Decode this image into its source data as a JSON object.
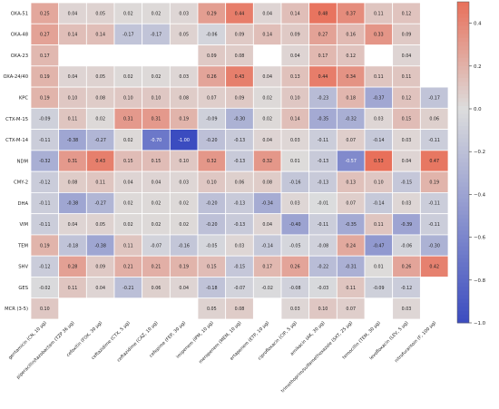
{
  "chart_data": {
    "type": "heatmap",
    "title": "",
    "xlabel": "",
    "ylabel": "",
    "rows": [
      "OXA-51",
      "OXA-48",
      "OXA-23",
      "OXA-24/40",
      "KPC",
      "CTX-M-15",
      "CTX-M-14",
      "NDM",
      "CMY-2",
      "DHA",
      "VIM",
      "TEM",
      "SHV",
      "GES",
      "MCR (3-5)"
    ],
    "columns": [
      "gentamicin (CN, 10 µg)",
      "piperacillin/tazobactam (TZP 36 µg)",
      "cefoxitin (FOX, 30 µg)",
      "ceftazidime (CTX, 5 µg)",
      "ceftazidime (CAZ, 10 µg)",
      "cefepime (FEP, 30 µg)",
      "imipenem (IPM, 10 µg)",
      "meropenem (MEM, 10 µg)",
      "ertapenem (ETP, 10 µg)",
      "ciprofloxacin (CIP, 5 µg)",
      "amikacin (AK, 30 µg)",
      "trimethoprim/sulfamethoxazole (SXT, 25 µg)",
      "temocillin (TEM, 30 µg)",
      "levofloxacin (LEV, 5 µg)",
      "nitrofurantoin (F, 100 µg)"
    ],
    "values": [
      [
        0.25,
        0.04,
        0.05,
        0.02,
        0.02,
        0.03,
        0.29,
        0.44,
        0.04,
        0.14,
        0.48,
        0.37,
        0.11,
        0.12,
        null
      ],
      [
        0.27,
        0.14,
        0.14,
        -0.17,
        -0.17,
        0.05,
        -0.06,
        0.09,
        0.14,
        0.09,
        0.27,
        0.16,
        0.33,
        0.09,
        null
      ],
      [
        0.17,
        null,
        null,
        null,
        null,
        null,
        0.09,
        0.08,
        null,
        0.04,
        0.17,
        0.12,
        null,
        0.04,
        null
      ],
      [
        0.19,
        0.04,
        0.05,
        0.02,
        0.02,
        0.03,
        0.26,
        0.43,
        0.04,
        0.13,
        0.44,
        0.34,
        0.11,
        0.11,
        null
      ],
      [
        0.19,
        0.1,
        0.08,
        0.1,
        0.1,
        0.08,
        0.07,
        0.09,
        0.02,
        0.1,
        -0.23,
        0.18,
        -0.37,
        0.12,
        -0.17
      ],
      [
        -0.09,
        0.11,
        0.02,
        0.31,
        0.31,
        0.19,
        -0.09,
        -0.3,
        0.02,
        0.14,
        -0.35,
        -0.32,
        0.03,
        0.15,
        0.06
      ],
      [
        -0.11,
        -0.38,
        -0.27,
        0.02,
        -0.7,
        -1.0,
        -0.2,
        -0.13,
        0.04,
        0.03,
        -0.11,
        0.07,
        -0.14,
        0.03,
        -0.11
      ],
      [
        -0.32,
        0.31,
        0.43,
        0.15,
        0.15,
        0.1,
        0.32,
        -0.13,
        0.32,
        0.01,
        -0.13,
        -0.57,
        0.53,
        0.04,
        0.47
      ],
      [
        -0.12,
        0.08,
        0.11,
        0.04,
        0.04,
        0.03,
        0.1,
        0.06,
        0.08,
        -0.16,
        -0.13,
        0.13,
        0.1,
        -0.15,
        0.19
      ],
      [
        -0.11,
        -0.38,
        -0.27,
        0.02,
        0.02,
        0.02,
        -0.2,
        -0.13,
        -0.34,
        0.03,
        -0.01,
        0.07,
        -0.14,
        0.03,
        -0.11
      ],
      [
        -0.11,
        0.04,
        0.05,
        0.02,
        0.02,
        0.02,
        -0.2,
        -0.13,
        0.04,
        -0.4,
        -0.11,
        -0.35,
        0.11,
        -0.39,
        -0.11
      ],
      [
        0.19,
        -0.18,
        -0.38,
        0.11,
        -0.07,
        -0.16,
        -0.05,
        0.03,
        -0.14,
        -0.05,
        -0.08,
        0.24,
        -0.47,
        -0.06,
        -0.3
      ],
      [
        -0.12,
        0.28,
        0.09,
        0.21,
        0.21,
        0.19,
        0.15,
        -0.15,
        0.17,
        0.26,
        -0.22,
        -0.31,
        0.01,
        0.26,
        0.42
      ],
      [
        -0.02,
        0.11,
        0.04,
        -0.21,
        0.06,
        0.04,
        -0.18,
        -0.07,
        -0.02,
        -0.08,
        -0.03,
        0.11,
        -0.09,
        -0.12,
        null
      ],
      [
        0.1,
        null,
        null,
        null,
        null,
        null,
        0.05,
        0.08,
        null,
        0.03,
        0.1,
        0.07,
        null,
        0.03,
        null
      ]
    ],
    "colorscale": {
      "min": -1.0,
      "max": 0.5,
      "low_color": "#3b4cc0",
      "mid_color": "#dddddd",
      "high_color": "#e8705a"
    },
    "colorbar_ticks": [
      "0.4",
      "0.2",
      "0.0",
      "−0.2",
      "−0.4",
      "−0.6",
      "−0.8",
      "−1.0"
    ],
    "colorbar_tick_values": [
      0.4,
      0.2,
      0.0,
      -0.2,
      -0.4,
      -0.6,
      -0.8,
      -1.0
    ],
    "grid": true,
    "legend": "right colorbar"
  }
}
